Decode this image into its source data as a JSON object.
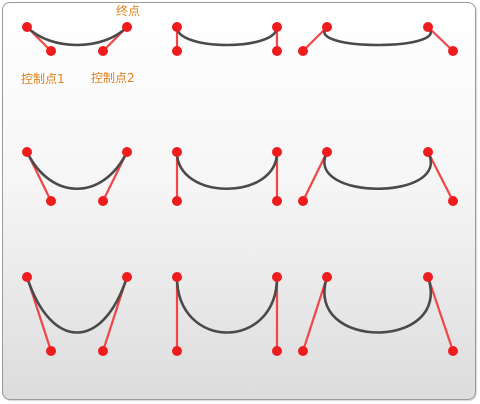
{
  "labels": {
    "end_point": "终点",
    "control_point_1": "控制点1",
    "control_point_2": "控制点2"
  },
  "colors": {
    "curve": "#4a4a4a",
    "handle": "#f04646",
    "point": "#ee1c1c",
    "label": "#e0801a"
  }
}
